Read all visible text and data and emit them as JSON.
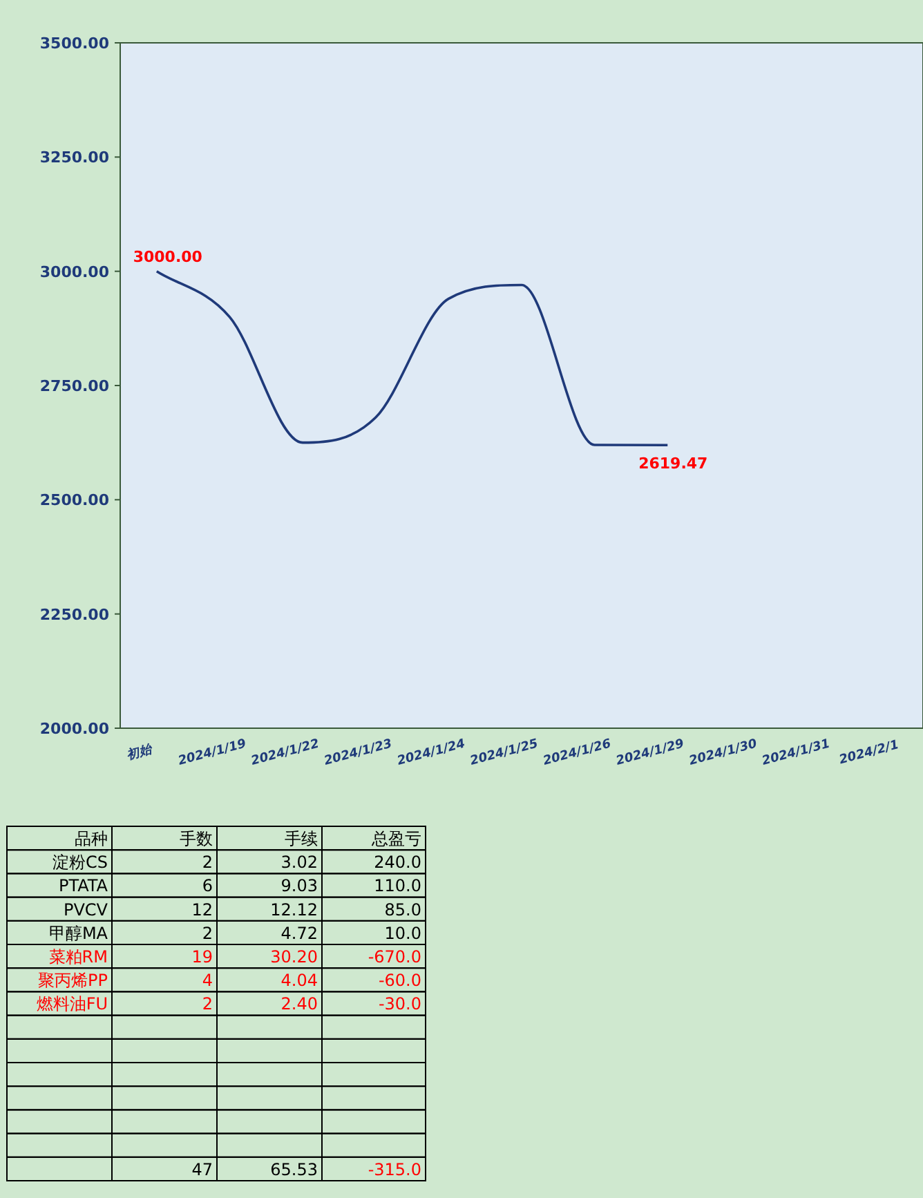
{
  "chart_data": [
    {
      "type": "line",
      "categories": [
        "初始",
        "2024/1/19",
        "2024/1/22",
        "2024/1/23",
        "2024/1/24",
        "2024/1/25",
        "2024/1/26",
        "2024/1/29",
        "2024/1/30",
        "2024/1/31",
        "2024/2/1"
      ],
      "series": [
        {
          "color": "#1f3a7a",
          "values": [
            3000,
            2900,
            2625,
            2680,
            2940,
            2970,
            2620,
            2619.47,
            null,
            null,
            null
          ],
          "value_labels": [
            "3000.00",
            null,
            null,
            null,
            null,
            null,
            null,
            "2619.47",
            null,
            null,
            null
          ]
        }
      ],
      "ylim": [
        2000,
        3500
      ],
      "yticks": [
        {
          "value": 2000,
          "label": "2000.00"
        },
        {
          "value": 2250,
          "label": "2250.00"
        },
        {
          "value": 2500,
          "label": "2500.00"
        },
        {
          "value": 2750,
          "label": "2750.00"
        },
        {
          "value": 3000,
          "label": "3000.00"
        },
        {
          "value": 3250,
          "label": "3250.00"
        },
        {
          "value": 3500,
          "label": "3500.00"
        }
      ],
      "grid": false,
      "marker": "none",
      "line_style": "solid"
    },
    {
      "type": "other",
      "annotations": [
        "品种",
        "手数",
        "手续",
        "总盈亏",
        "淀粉CS",
        "2",
        "3.02",
        "240.0",
        "PTATA",
        "6",
        "9.03",
        "110.0",
        "PVCV",
        "12",
        "12.12",
        "85.0",
        "甲醇MA",
        "2",
        "4.72",
        "10.0",
        "菜粕RM",
        "19",
        "30.20",
        "-670.0",
        "聚丙烯PP",
        "4",
        "4.04",
        "-60.0",
        "燃料油FU",
        "2",
        "2.40",
        "-30.0",
        null,
        null,
        null,
        null,
        null,
        null,
        null,
        null,
        null,
        null,
        null,
        null,
        null,
        null,
        null,
        null,
        null,
        null,
        null,
        null,
        null,
        null,
        null,
        null,
        null,
        "47",
        "65.53",
        "-315.0"
      ],
      "colors": [
        "#000000",
        "#000000",
        "#000000",
        "#000000",
        "#000000",
        "#000000",
        "#000000",
        "#000000",
        "#000000",
        "#000000",
        "#000000",
        "#000000",
        "#000000",
        "#000000",
        "#000000",
        "#000000",
        "#000000",
        "#000000",
        "#000000",
        "#000000",
        "#ff0000",
        "#ff0000",
        "#ff0000",
        "#ff0000",
        "#ff0000",
        "#ff0000",
        "#ff0000",
        "#ff0000",
        "#ff0000",
        "#ff0000",
        "#ff0000",
        "#ff0000",
        null,
        null,
        null,
        null,
        null,
        null,
        null,
        null,
        null,
        null,
        null,
        null,
        null,
        null,
        null,
        null,
        null,
        null,
        null,
        null,
        null,
        null,
        null,
        null,
        null,
        "#000000",
        "#000000",
        "#ff0000"
      ]
    }
  ]
}
